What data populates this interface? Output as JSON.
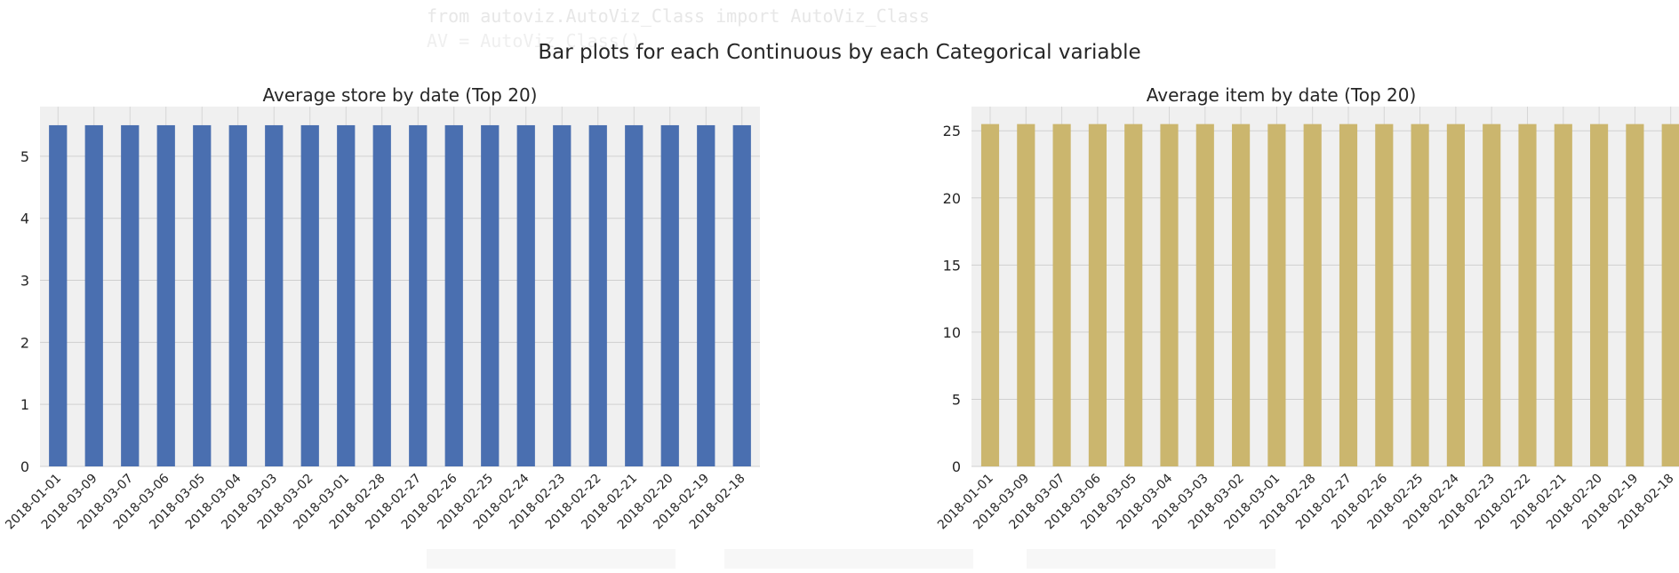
{
  "background_code": {
    "line1": "from autoviz.AutoViz_Class import AutoViz_Class",
    "line2": "AV = AutoViz_Class()"
  },
  "suptitle": "Bar plots for each Continuous by each Categorical variable",
  "chart_data": [
    {
      "type": "bar",
      "title": "Average store by date (Top 20)",
      "xlabel": "",
      "ylabel": "",
      "ylim": [
        0,
        5.8
      ],
      "yticks": [
        0,
        1,
        2,
        3,
        4,
        5
      ],
      "grid": true,
      "bar_color": "#4a6fb0",
      "plot_bg": "#f0f0f0",
      "categories": [
        "2018-01-01",
        "2018-03-09",
        "2018-03-07",
        "2018-03-06",
        "2018-03-05",
        "2018-03-04",
        "2018-03-03",
        "2018-03-02",
        "2018-03-01",
        "2018-02-28",
        "2018-02-27",
        "2018-02-26",
        "2018-02-25",
        "2018-02-24",
        "2018-02-23",
        "2018-02-22",
        "2018-02-21",
        "2018-02-20",
        "2018-02-19",
        "2018-02-18"
      ],
      "values": [
        5.5,
        5.5,
        5.5,
        5.5,
        5.5,
        5.5,
        5.5,
        5.5,
        5.5,
        5.5,
        5.5,
        5.5,
        5.5,
        5.5,
        5.5,
        5.5,
        5.5,
        5.5,
        5.5,
        5.5
      ]
    },
    {
      "type": "bar",
      "title": "Average item by date (Top 20)",
      "xlabel": "",
      "ylabel": "",
      "ylim": [
        0,
        26.8
      ],
      "yticks": [
        0,
        5,
        10,
        15,
        20,
        25
      ],
      "grid": true,
      "bar_color": "#cbb66e",
      "plot_bg": "#f0f0f0",
      "categories": [
        "2018-01-01",
        "2018-03-09",
        "2018-03-07",
        "2018-03-06",
        "2018-03-05",
        "2018-03-04",
        "2018-03-03",
        "2018-03-02",
        "2018-03-01",
        "2018-02-28",
        "2018-02-27",
        "2018-02-26",
        "2018-02-25",
        "2018-02-24",
        "2018-02-23",
        "2018-02-22",
        "2018-02-21",
        "2018-02-20",
        "2018-02-19",
        "2018-02-18"
      ],
      "values": [
        25.5,
        25.5,
        25.5,
        25.5,
        25.5,
        25.5,
        25.5,
        25.5,
        25.5,
        25.5,
        25.5,
        25.5,
        25.5,
        25.5,
        25.5,
        25.5,
        25.5,
        25.5,
        25.5,
        25.5
      ]
    }
  ]
}
